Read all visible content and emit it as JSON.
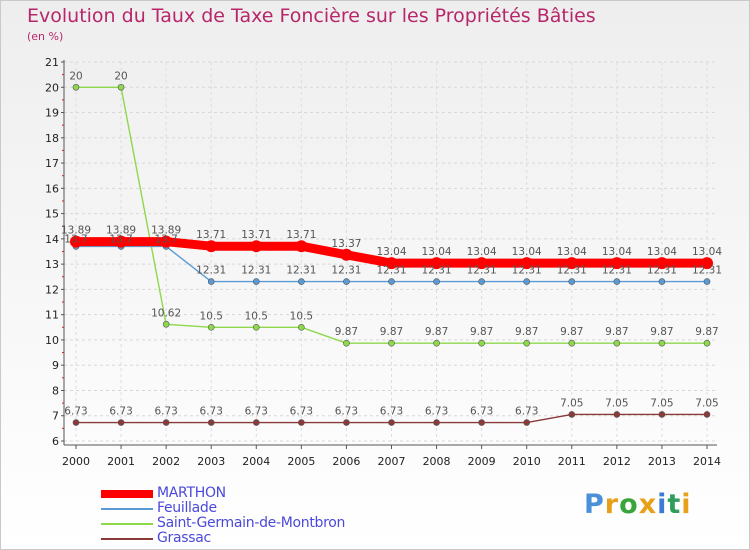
{
  "chart_data": {
    "type": "line",
    "title": "Evolution du Taux de Taxe Foncière sur les Propriétés Bâties",
    "subtitle": "(en %)",
    "ylim": [
      6,
      21
    ],
    "yticks": [
      "6",
      "7",
      "8",
      "9",
      "10",
      "11",
      "12",
      "13",
      "14",
      "15",
      "16",
      "17",
      "18",
      "19",
      "20",
      "21"
    ],
    "categories": [
      "2000",
      "2001",
      "2002",
      "2003",
      "2004",
      "2005",
      "2006",
      "2007",
      "2008",
      "2009",
      "2010",
      "2011",
      "2012",
      "2013",
      "2014"
    ],
    "series": [
      {
        "name": "MARTHON",
        "color": "#ff0000",
        "values": [
          13.89,
          13.89,
          13.89,
          13.71,
          13.71,
          13.71,
          13.37,
          13.04,
          13.04,
          13.04,
          13.04,
          13.04,
          13.04,
          13.04,
          13.04
        ],
        "labels": [
          "13.89",
          "13.89",
          "13.89",
          "13.71",
          "13.71",
          "13.71",
          "13.37",
          "13.04",
          "13.04",
          "13.04",
          "13.04",
          "13.04",
          "13.04",
          "13.04",
          "13.04"
        ]
      },
      {
        "name": "Feuillade",
        "color": "#5b9bd5",
        "values": [
          13.7,
          13.7,
          13.7,
          12.31,
          12.31,
          12.31,
          12.31,
          12.31,
          12.31,
          12.31,
          12.31,
          12.31,
          12.31,
          12.31,
          12.31
        ],
        "labels": [
          "13.7",
          "13.7",
          "13.7",
          "12.31",
          "12.31",
          "12.31",
          "12.31",
          "12.31",
          "12.31",
          "12.31",
          "12.31",
          "12.31",
          "12.31",
          "12.31",
          "12.31"
        ]
      },
      {
        "name": "Saint-Germain-de-Montbron",
        "color": "#8ed84b",
        "values": [
          20,
          20,
          10.62,
          10.5,
          10.5,
          10.5,
          9.87,
          9.87,
          9.87,
          9.87,
          9.87,
          9.87,
          9.87,
          9.87,
          9.87
        ],
        "labels": [
          "20",
          "20",
          "10.62",
          "10.5",
          "10.5",
          "10.5",
          "9.87",
          "9.87",
          "9.87",
          "9.87",
          "9.87",
          "9.87",
          "9.87",
          "9.87",
          "9.87"
        ]
      },
      {
        "name": "Grassac",
        "color": "#8b3a3a",
        "values": [
          6.73,
          6.73,
          6.73,
          6.73,
          6.73,
          6.73,
          6.73,
          6.73,
          6.73,
          6.73,
          6.73,
          7.05,
          7.05,
          7.05,
          7.05
        ],
        "labels": [
          "6.73",
          "6.73",
          "6.73",
          "6.73",
          "6.73",
          "6.73",
          "6.73",
          "6.73",
          "6.73",
          "6.73",
          "6.73",
          "7.05",
          "7.05",
          "7.05",
          "7.05"
        ]
      }
    ],
    "legend_position": "bottom-left"
  },
  "logo": {
    "text": [
      "P",
      "r",
      "o",
      "x",
      "i",
      "t",
      "i"
    ],
    "colors": [
      "#4a90d9",
      "#e8a019",
      "#3aa53a",
      "#e8a019",
      "#3a7ad9",
      "#2f9d5b",
      "#e8a019"
    ]
  }
}
